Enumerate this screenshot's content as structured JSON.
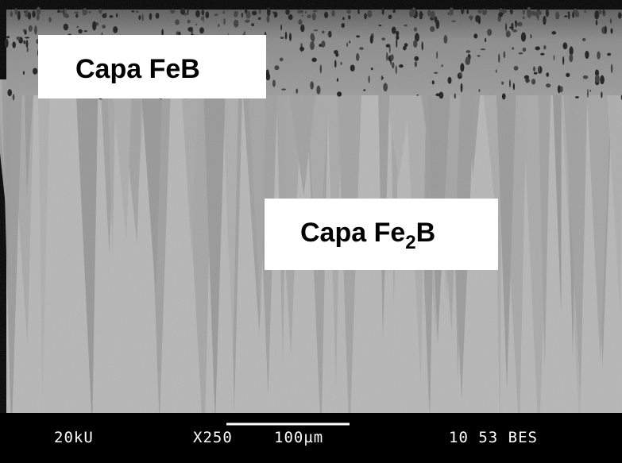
{
  "labels": [
    {
      "text": "Capa FeB"
    },
    {
      "text": "Capa Fe",
      "subscript": "2",
      "text_end": "B"
    }
  ],
  "footer": {
    "voltage": "20kU",
    "magnification": "X250",
    "scale": "100µm",
    "info": "10 53 BES"
  }
}
